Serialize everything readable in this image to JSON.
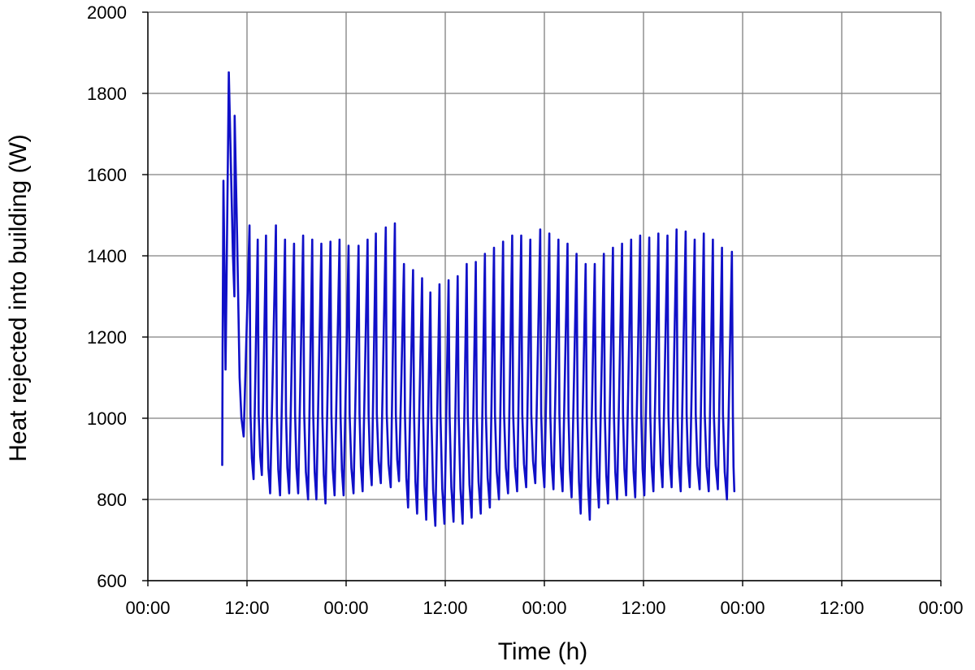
{
  "chart_data": {
    "type": "line",
    "title": "",
    "xlabel": "Time (h)",
    "ylabel": "Heat rejected into building (W)",
    "x_tick_labels": [
      "00:00",
      "12:00",
      "00:00",
      "12:00",
      "00:00",
      "12:00",
      "00:00",
      "12:00",
      "00:00"
    ],
    "xlim_hours": [
      0,
      96
    ],
    "ylim": [
      600,
      2000
    ],
    "y_ticks": [
      600,
      800,
      1000,
      1200,
      1400,
      1600,
      1800,
      2000
    ],
    "grid": true,
    "colors": {
      "series": "#1010c8",
      "grid": "#808080",
      "axis": "#000000"
    },
    "series": [
      {
        "peaks": [
          [
            9.0,
            1585
          ],
          [
            9.8,
            1852
          ],
          [
            10.5,
            1745
          ],
          [
            12.3,
            1475
          ],
          [
            13.3,
            1440
          ],
          [
            14.3,
            1450
          ],
          [
            15.5,
            1475
          ],
          [
            16.6,
            1440
          ],
          [
            17.7,
            1430
          ],
          [
            18.8,
            1450
          ],
          [
            19.9,
            1440
          ],
          [
            21.0,
            1430
          ],
          [
            22.1,
            1435
          ],
          [
            23.2,
            1440
          ],
          [
            24.3,
            1425
          ],
          [
            25.5,
            1425
          ],
          [
            26.6,
            1440
          ],
          [
            27.6,
            1455
          ],
          [
            28.8,
            1470
          ],
          [
            29.9,
            1480
          ],
          [
            31.0,
            1380
          ],
          [
            32.1,
            1365
          ],
          [
            33.2,
            1345
          ],
          [
            34.2,
            1310
          ],
          [
            35.3,
            1330
          ],
          [
            36.4,
            1340
          ],
          [
            37.5,
            1350
          ],
          [
            38.6,
            1380
          ],
          [
            39.7,
            1385
          ],
          [
            40.8,
            1405
          ],
          [
            41.9,
            1420
          ],
          [
            43.0,
            1435
          ],
          [
            44.1,
            1450
          ],
          [
            45.2,
            1450
          ],
          [
            46.3,
            1440
          ],
          [
            47.5,
            1465
          ],
          [
            48.6,
            1455
          ],
          [
            49.7,
            1440
          ],
          [
            50.8,
            1430
          ],
          [
            51.9,
            1405
          ],
          [
            53.0,
            1380
          ],
          [
            54.1,
            1380
          ],
          [
            55.2,
            1405
          ],
          [
            56.3,
            1420
          ],
          [
            57.4,
            1430
          ],
          [
            58.5,
            1440
          ],
          [
            59.6,
            1450
          ],
          [
            60.7,
            1445
          ],
          [
            61.8,
            1455
          ],
          [
            62.9,
            1450
          ],
          [
            64.0,
            1465
          ],
          [
            65.1,
            1460
          ],
          [
            66.2,
            1440
          ],
          [
            67.3,
            1455
          ],
          [
            68.4,
            1440
          ],
          [
            69.5,
            1420
          ],
          [
            70.7,
            1410
          ]
        ],
        "troughs": [
          [
            11.6,
            955
          ],
          [
            12.8,
            850
          ],
          [
            13.8,
            860
          ],
          [
            14.8,
            815
          ],
          [
            16.0,
            810
          ],
          [
            17.1,
            815
          ],
          [
            18.2,
            815
          ],
          [
            19.4,
            800
          ],
          [
            20.4,
            800
          ],
          [
            21.5,
            790
          ],
          [
            22.6,
            810
          ],
          [
            23.7,
            810
          ],
          [
            24.9,
            815
          ],
          [
            26.0,
            820
          ],
          [
            27.1,
            835
          ],
          [
            28.2,
            840
          ],
          [
            29.4,
            830
          ],
          [
            30.4,
            845
          ],
          [
            31.5,
            780
          ],
          [
            32.6,
            765
          ],
          [
            33.7,
            750
          ],
          [
            34.8,
            735
          ],
          [
            35.9,
            740
          ],
          [
            37.0,
            745
          ],
          [
            38.1,
            740
          ],
          [
            39.2,
            755
          ],
          [
            40.3,
            765
          ],
          [
            41.4,
            780
          ],
          [
            42.5,
            800
          ],
          [
            43.6,
            815
          ],
          [
            44.7,
            820
          ],
          [
            45.8,
            830
          ],
          [
            46.9,
            840
          ],
          [
            48.0,
            830
          ],
          [
            49.1,
            825
          ],
          [
            50.2,
            820
          ],
          [
            51.3,
            805
          ],
          [
            52.4,
            765
          ],
          [
            53.5,
            750
          ],
          [
            54.6,
            780
          ],
          [
            55.7,
            790
          ],
          [
            56.8,
            800
          ],
          [
            57.9,
            810
          ],
          [
            59.0,
            805
          ],
          [
            60.1,
            810
          ],
          [
            61.2,
            820
          ],
          [
            62.3,
            830
          ],
          [
            63.4,
            830
          ],
          [
            64.5,
            820
          ],
          [
            65.6,
            830
          ],
          [
            66.8,
            825
          ],
          [
            67.9,
            820
          ],
          [
            69.0,
            825
          ],
          [
            70.1,
            800
          ],
          [
            71.0,
            820
          ]
        ]
      }
    ]
  }
}
